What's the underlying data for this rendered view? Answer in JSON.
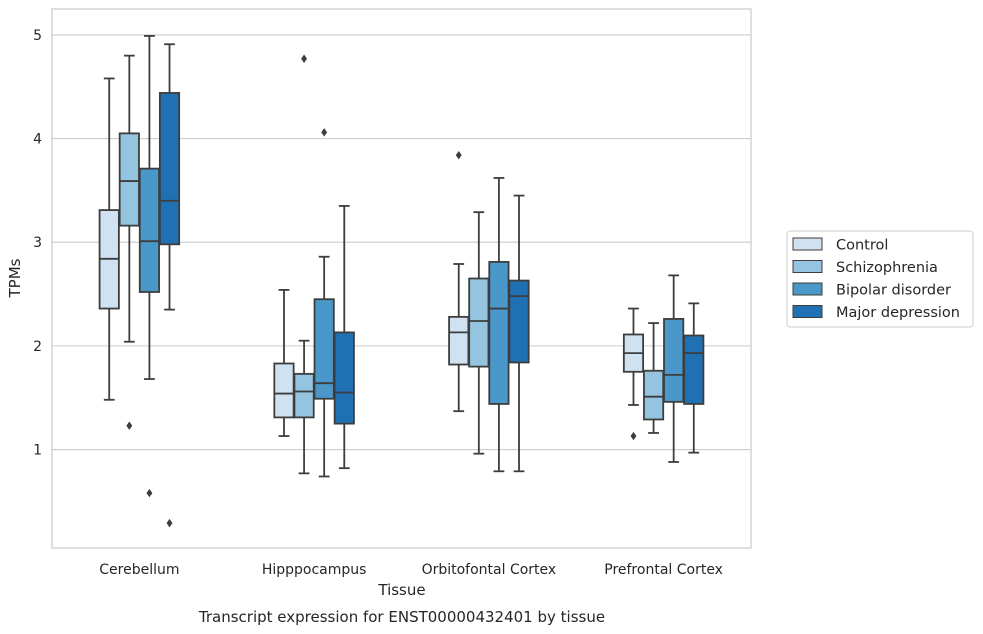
{
  "caption": "Transcript expression for ENST00000432401 by tissue",
  "chart_data": {
    "type": "box",
    "xlabel": "Tissue",
    "ylabel": "TPMs",
    "ylim": [
      0.05,
      5.25
    ],
    "yticks": [
      1,
      2,
      3,
      4,
      5
    ],
    "grid": "horizontal",
    "legend_position": "right",
    "categories": [
      "Cerebellum",
      "Hipppocampus",
      "Orbitofontal Cortex",
      "Prefrontal Cortex"
    ],
    "series": [
      {
        "name": "Control",
        "color": "#d0e1f2",
        "boxes": [
          {
            "whisker_low": 1.48,
            "q1": 2.36,
            "median": 2.84,
            "q3": 3.31,
            "whisker_high": 4.58,
            "outliers": []
          },
          {
            "whisker_low": 1.13,
            "q1": 1.31,
            "median": 1.54,
            "q3": 1.83,
            "whisker_high": 2.54,
            "outliers": []
          },
          {
            "whisker_low": 1.37,
            "q1": 1.82,
            "median": 2.13,
            "q3": 2.28,
            "whisker_high": 2.79,
            "outliers": [
              3.84
            ]
          },
          {
            "whisker_low": 1.43,
            "q1": 1.75,
            "median": 1.93,
            "q3": 2.11,
            "whisker_high": 2.36,
            "outliers": [
              1.13
            ]
          }
        ]
      },
      {
        "name": "Schizophrenia",
        "color": "#94c4df",
        "boxes": [
          {
            "whisker_low": 2.04,
            "q1": 3.16,
            "median": 3.59,
            "q3": 4.05,
            "whisker_high": 4.8,
            "outliers": [
              1.23
            ]
          },
          {
            "whisker_low": 0.77,
            "q1": 1.31,
            "median": 1.56,
            "q3": 1.73,
            "whisker_high": 2.05,
            "outliers": [
              4.77
            ]
          },
          {
            "whisker_low": 0.96,
            "q1": 1.8,
            "median": 2.24,
            "q3": 2.65,
            "whisker_high": 3.29,
            "outliers": []
          },
          {
            "whisker_low": 1.16,
            "q1": 1.29,
            "median": 1.51,
            "q3": 1.76,
            "whisker_high": 2.22,
            "outliers": []
          }
        ]
      },
      {
        "name": "Bipolar disorder",
        "color": "#4a98c9",
        "boxes": [
          {
            "whisker_low": 1.68,
            "q1": 2.52,
            "median": 3.01,
            "q3": 3.71,
            "whisker_high": 4.99,
            "outliers": [
              0.58
            ]
          },
          {
            "whisker_low": 0.74,
            "q1": 1.49,
            "median": 1.64,
            "q3": 2.45,
            "whisker_high": 2.86,
            "outliers": [
              4.06
            ]
          },
          {
            "whisker_low": 0.79,
            "q1": 1.44,
            "median": 2.36,
            "q3": 2.81,
            "whisker_high": 3.62,
            "outliers": []
          },
          {
            "whisker_low": 0.88,
            "q1": 1.46,
            "median": 1.72,
            "q3": 2.26,
            "whisker_high": 2.68,
            "outliers": []
          }
        ]
      },
      {
        "name": "Major depression",
        "color": "#2070b4",
        "boxes": [
          {
            "whisker_low": 2.35,
            "q1": 2.98,
            "median": 3.4,
            "q3": 4.44,
            "whisker_high": 4.91,
            "outliers": [
              0.29
            ]
          },
          {
            "whisker_low": 0.82,
            "q1": 1.25,
            "median": 1.55,
            "q3": 2.13,
            "whisker_high": 3.35,
            "outliers": []
          },
          {
            "whisker_low": 0.79,
            "q1": 1.84,
            "median": 2.48,
            "q3": 2.63,
            "whisker_high": 3.45,
            "outliers": []
          },
          {
            "whisker_low": 0.97,
            "q1": 1.44,
            "median": 1.93,
            "q3": 2.1,
            "whisker_high": 2.41,
            "outliers": []
          }
        ]
      }
    ]
  }
}
